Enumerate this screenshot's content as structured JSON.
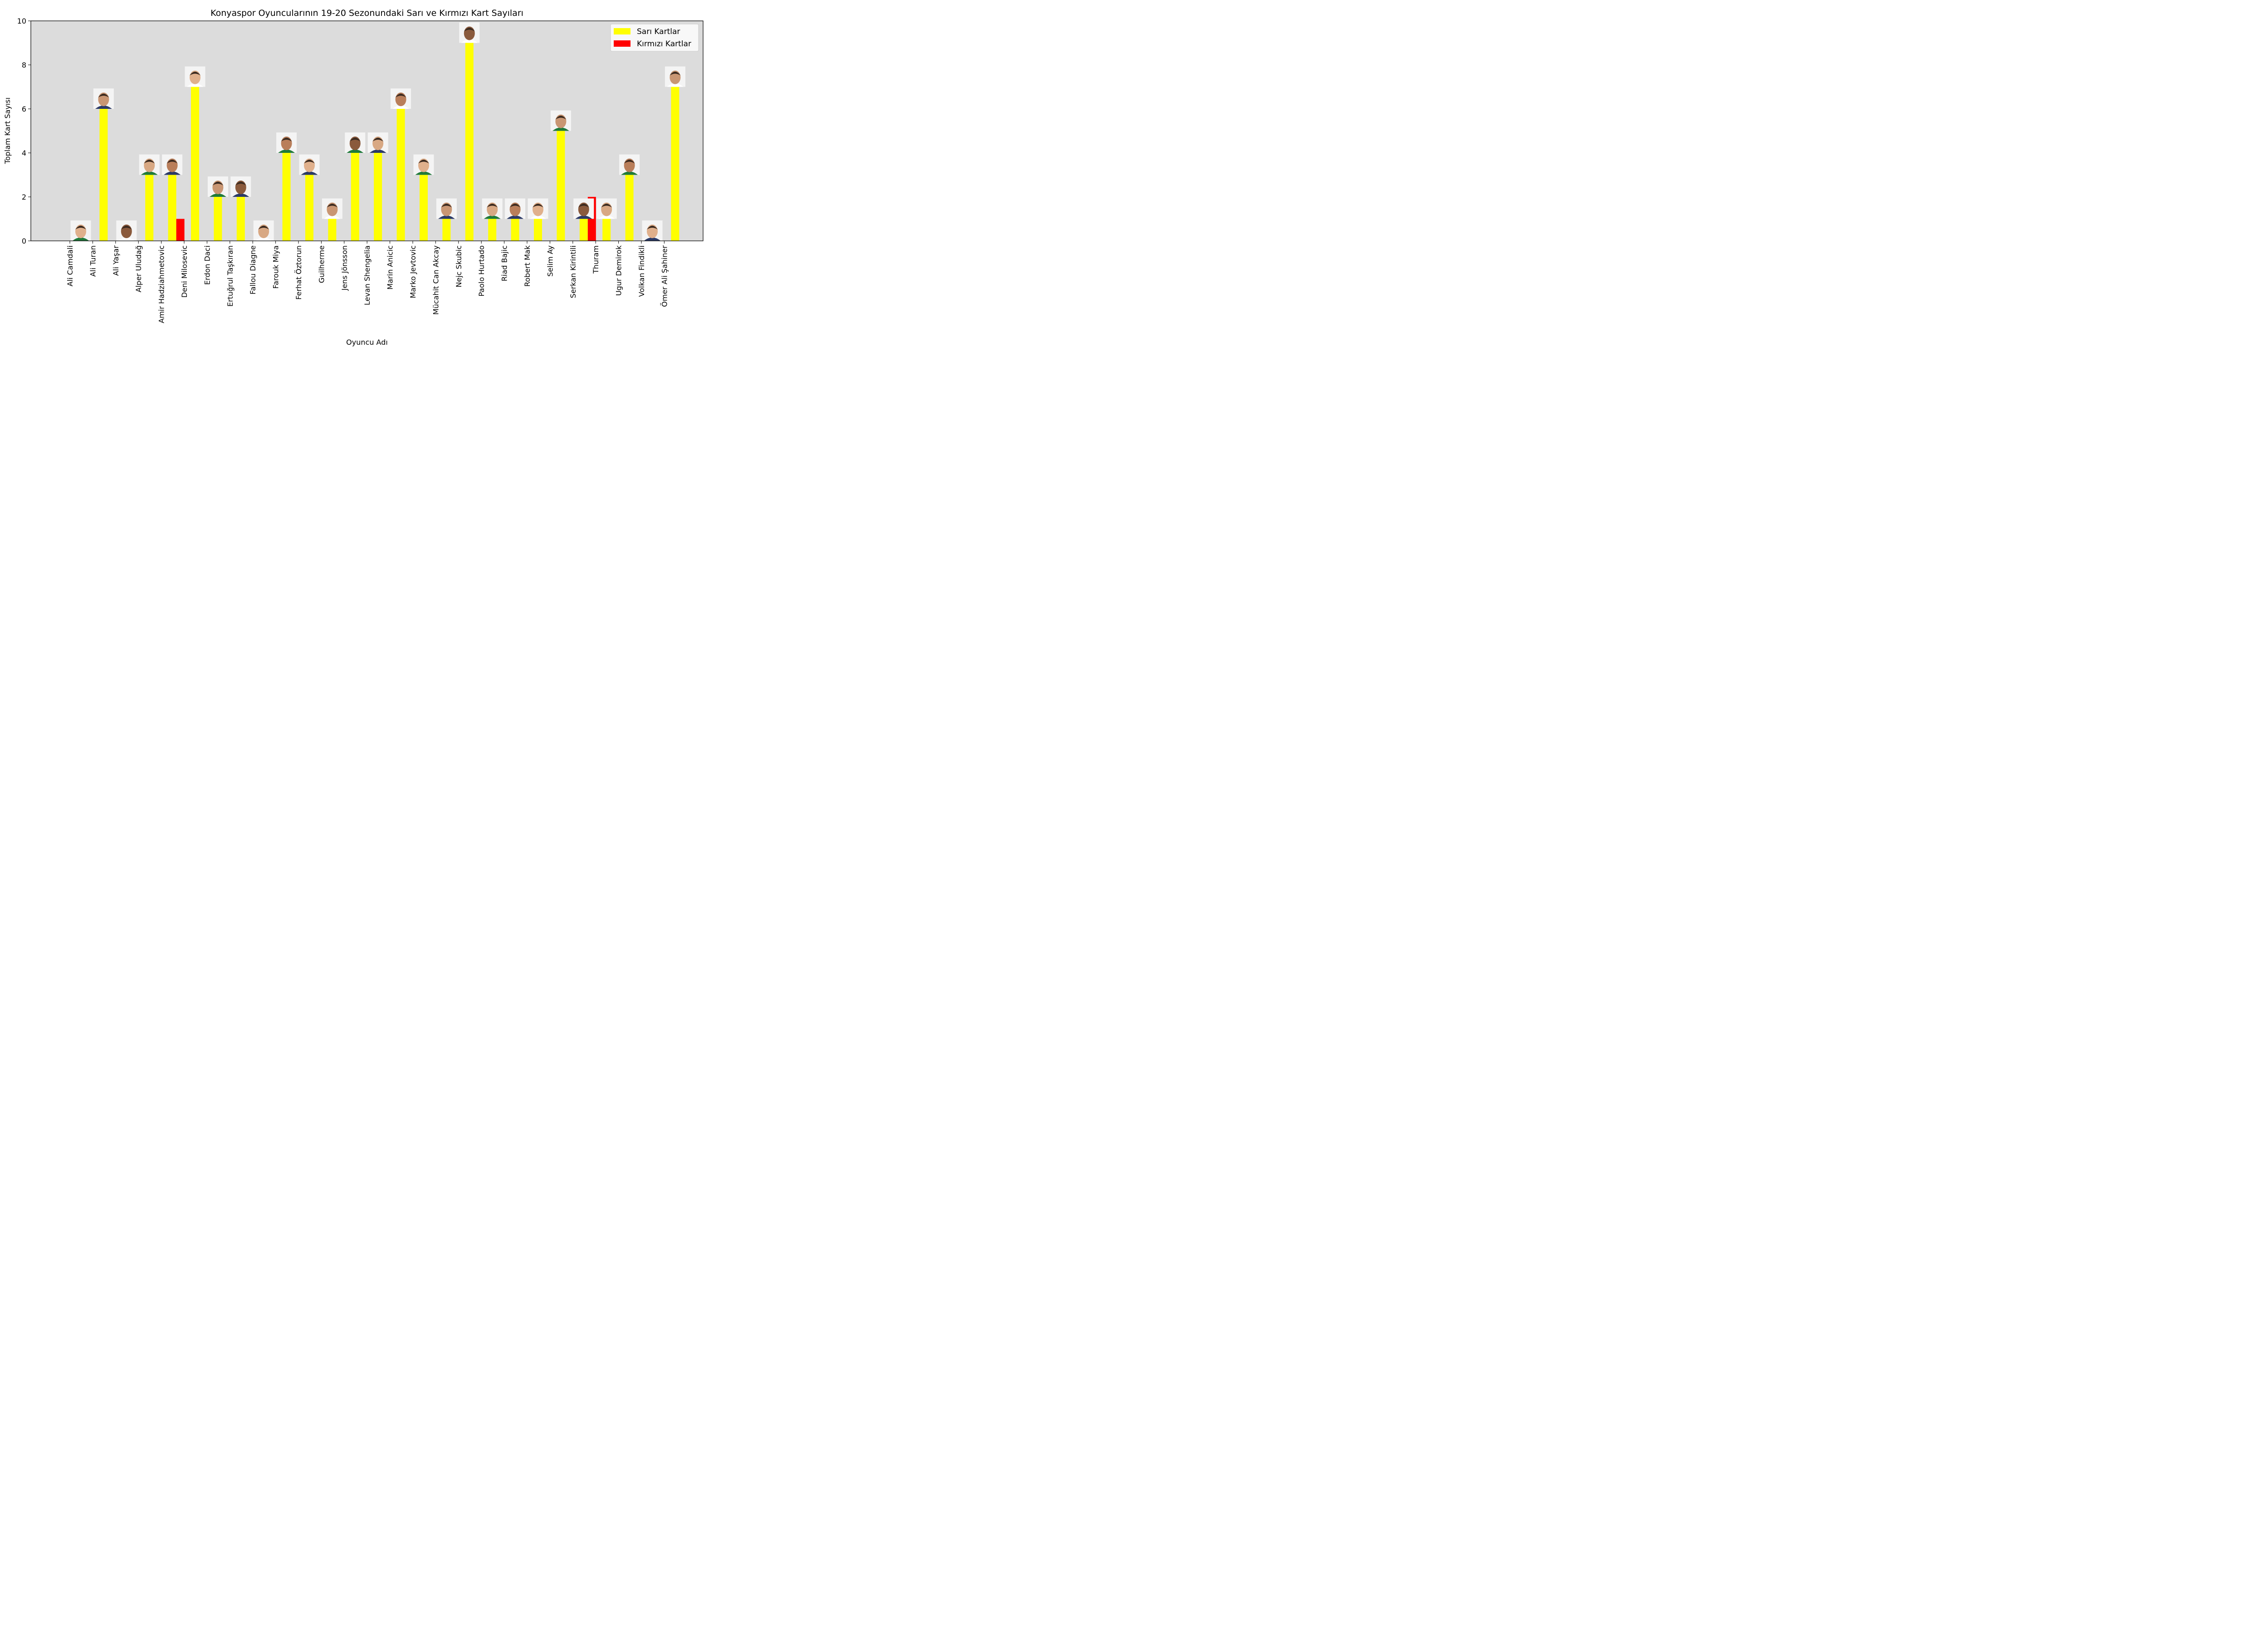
{
  "chart_data": {
    "type": "bar",
    "title": "Konyaspor Oyuncularının 19-20 Sezonundaki Sarı ve Kırmızı Kart Sayıları",
    "xlabel": "Oyuncu Adı",
    "ylabel": "Toplam Kart Sayısı",
    "ylim": [
      0,
      10
    ],
    "yticks": [
      0,
      2,
      4,
      6,
      8,
      10
    ],
    "grid": false,
    "legend_position": "top-right",
    "categories": [
      "Ali Camdali",
      "Ali Turan",
      "Ali Yaşar",
      "Alper Uludağ",
      "Amir Hadziahmetovic",
      "Deni Milosevic",
      "Erdon Daci",
      "Ertuğrul Taşkıran",
      "Fallou Diagne",
      "Farouk Miya",
      "Ferhat Öztorun",
      "Guilherme",
      "Jens Jönsson",
      "Levan Shengelia",
      "Marin Anicic",
      "Marko Jevtovic",
      "Mücahit Can Akcay",
      "Nejc Skubic",
      "Paolo Hurtado",
      "Riad Bajic",
      "Robert Mak",
      "Selim Ay",
      "Serkan Kirintili",
      "Thuram",
      "Ugur Demirok",
      "Volkan Findikli",
      "Ömer Ali Şahiner"
    ],
    "series": [
      {
        "name": "Sarı Kartlar",
        "color": "#ffff00",
        "values": [
          0,
          6,
          0,
          3,
          3,
          7,
          2,
          2,
          0,
          4,
          3,
          1,
          4,
          4,
          6,
          3,
          1,
          9,
          1,
          1,
          1,
          5,
          1,
          1,
          3,
          0,
          7
        ]
      },
      {
        "name": "Kırmızı Kartlar",
        "color": "#ff0000",
        "values": [
          0,
          0,
          0,
          0,
          1,
          0,
          0,
          0,
          0,
          0,
          0,
          0,
          0,
          0,
          0,
          0,
          0,
          0,
          0,
          0,
          0,
          0,
          2,
          0,
          0,
          0,
          0
        ]
      }
    ],
    "colors": {
      "plot_background": "#dcdcdc",
      "axis": "#000000"
    },
    "marker_icon": "player-photo-icon"
  }
}
